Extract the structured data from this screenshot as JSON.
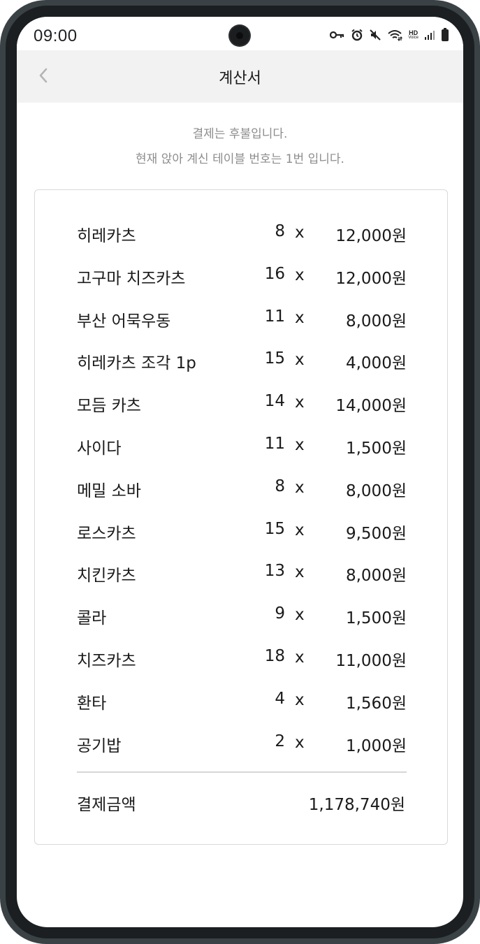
{
  "status_bar": {
    "time": "09:00",
    "icons": [
      "key-icon",
      "alarm-icon",
      "mute-icon",
      "wifi-icon",
      "hd-voice-icon",
      "signal-icon",
      "battery-icon"
    ],
    "hd_label": "HD",
    "voice_label": "Voice"
  },
  "header": {
    "title": "계산서",
    "back_icon": "chevron-left-icon"
  },
  "notice": {
    "line1": "결제는 후불입니다.",
    "line2": "현재 앉아 계신 테이블 번호는 1번 입니다."
  },
  "receipt": {
    "multiply_symbol": "x",
    "items": [
      {
        "name": "히레카츠",
        "qty": "8",
        "price": "12,000원"
      },
      {
        "name": "고구마 치즈카츠",
        "qty": "16",
        "price": "12,000원"
      },
      {
        "name": "부산 어묵우동",
        "qty": "11",
        "price": "8,000원"
      },
      {
        "name": "히레카츠 조각 1p",
        "qty": "15",
        "price": "4,000원"
      },
      {
        "name": "모듬 카츠",
        "qty": "14",
        "price": "14,000원"
      },
      {
        "name": "사이다",
        "qty": "11",
        "price": "1,500원"
      },
      {
        "name": "메밀 소바",
        "qty": "8",
        "price": "8,000원"
      },
      {
        "name": "로스카츠",
        "qty": "15",
        "price": "9,500원"
      },
      {
        "name": "치킨카츠",
        "qty": "13",
        "price": "8,000원"
      },
      {
        "name": "콜라",
        "qty": "9",
        "price": "1,500원"
      },
      {
        "name": "치즈카츠",
        "qty": "18",
        "price": "11,000원"
      },
      {
        "name": "환타",
        "qty": "4",
        "price": "1,560원"
      },
      {
        "name": "공기밥",
        "qty": "2",
        "price": "1,000원"
      }
    ],
    "total_label": "결제금액",
    "total_value": "1,178,740원"
  }
}
